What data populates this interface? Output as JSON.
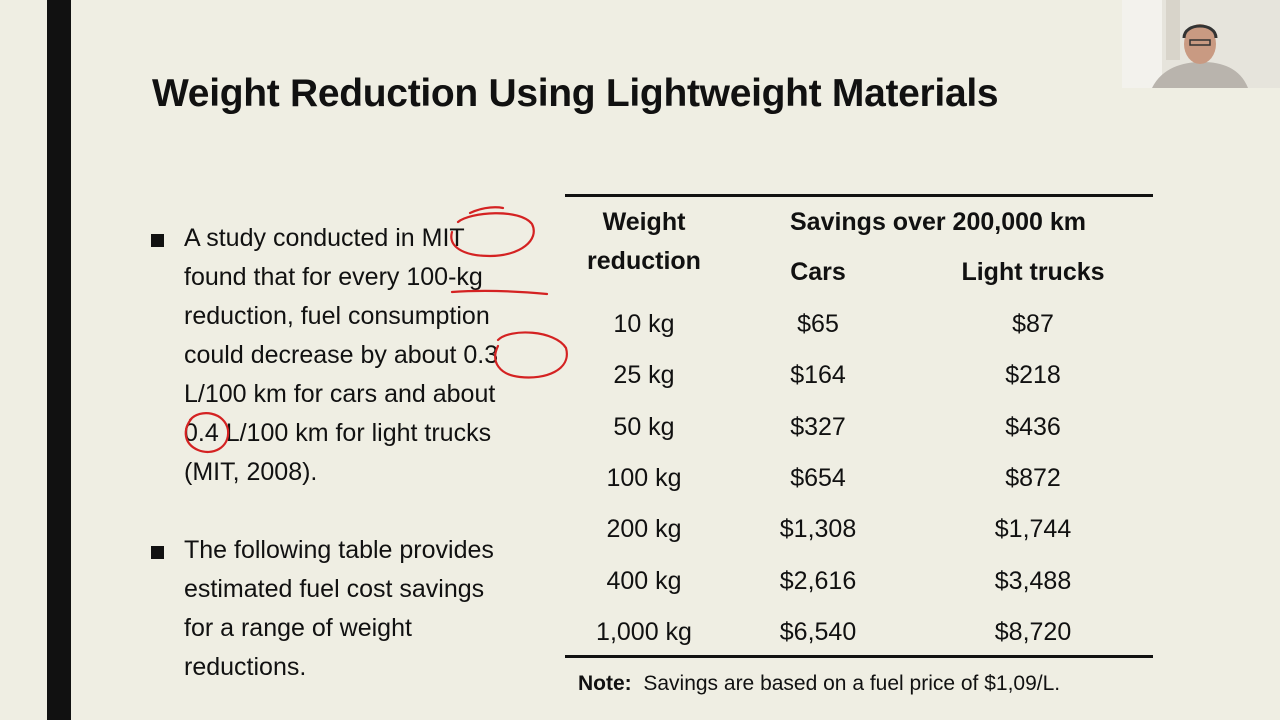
{
  "title": "Weight Reduction Using Lightweight Materials",
  "bullets": [
    {
      "lines": [
        "A study conducted in MIT",
        "found that for every 100-kg",
        "reduction, fuel consumption",
        "could decrease by about 0.3",
        "L/100 km for cars and about",
        "0.4 L/100 km for light trucks",
        "(MIT, 2008)."
      ]
    },
    {
      "lines": [
        "The following table provides",
        "estimated fuel cost savings",
        "for a range of weight",
        "reductions."
      ]
    }
  ],
  "table": {
    "header": {
      "weight": [
        "Weight",
        "reduction"
      ],
      "savings": "Savings over 200,000 km",
      "columns": [
        "Cars",
        "Light trucks"
      ]
    },
    "rows": [
      [
        "10 kg",
        "$65",
        "$87"
      ],
      [
        "25 kg",
        "$164",
        "$218"
      ],
      [
        "50 kg",
        "$327",
        "$436"
      ],
      [
        "100 kg",
        "$654",
        "$872"
      ],
      [
        "200 kg",
        "$1,308",
        "$1,744"
      ],
      [
        "400 kg",
        "$2,616",
        "$3,488"
      ],
      [
        "1,000 kg",
        "$6,540",
        "$8,720"
      ]
    ]
  },
  "note": {
    "label": "Note:",
    "text": "Savings are based on a fuel price of $1,09/L."
  }
}
